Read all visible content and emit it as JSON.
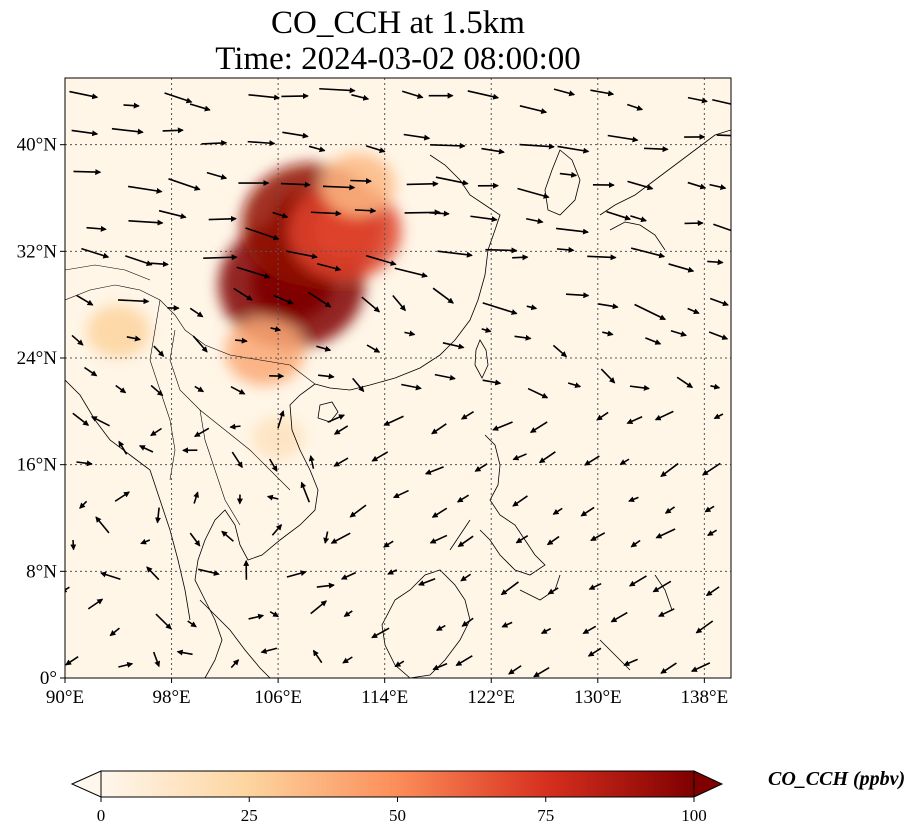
{
  "title": {
    "line1": "CO_CCH at 1.5km",
    "line2": "Time: 2024-03-02 08:00:00"
  },
  "map": {
    "projection": "PlateCarree",
    "extent": {
      "lon": [
        90,
        140
      ],
      "lat": [
        0,
        45
      ]
    },
    "lon_ticks": [
      {
        "value": 90,
        "label": "90°E"
      },
      {
        "value": 98,
        "label": "98°E"
      },
      {
        "value": 106,
        "label": "106°E"
      },
      {
        "value": 114,
        "label": "114°E"
      },
      {
        "value": 122,
        "label": "122°E"
      },
      {
        "value": 130,
        "label": "130°E"
      },
      {
        "value": 138,
        "label": "138°E"
      }
    ],
    "lat_ticks": [
      {
        "value": 0,
        "label": "0°"
      },
      {
        "value": 8,
        "label": "8°N"
      },
      {
        "value": 16,
        "label": "16°N"
      },
      {
        "value": 24,
        "label": "24°N"
      },
      {
        "value": 32,
        "label": "32°N"
      },
      {
        "value": 40,
        "label": "40°N"
      }
    ],
    "gridlines": true,
    "coastlines": true,
    "field_colormap": "OrRd",
    "field_hotspots": [
      {
        "lon": 107,
        "lat": 29.5,
        "peak_ppbv": 100
      },
      {
        "lon": 108.5,
        "lat": 34,
        "peak_ppbv": 95
      },
      {
        "lon": 111,
        "lat": 33.5,
        "peak_ppbv": 70
      },
      {
        "lon": 105,
        "lat": 24.5,
        "peak_ppbv": 40
      },
      {
        "lon": 112,
        "lat": 37,
        "peak_ppbv": 35
      },
      {
        "lon": 94,
        "lat": 26,
        "peak_ppbv": 25
      },
      {
        "lon": 106,
        "lat": 18,
        "peak_ppbv": 15
      }
    ],
    "wind_field": "regional wind vectors (arrows) at 1.5km"
  },
  "colorbar": {
    "label": "CO_CCH (ppbv)",
    "range": [
      0,
      100
    ],
    "extend": "both",
    "ticks": [
      {
        "value": 0,
        "label": "0"
      },
      {
        "value": 25,
        "label": "25"
      },
      {
        "value": 50,
        "label": "50"
      },
      {
        "value": 75,
        "label": "75"
      },
      {
        "value": 100,
        "label": "100"
      }
    ],
    "colors": [
      "#fff7ec",
      "#fdd49e",
      "#fc8d59",
      "#d7301f",
      "#7f0000"
    ]
  }
}
